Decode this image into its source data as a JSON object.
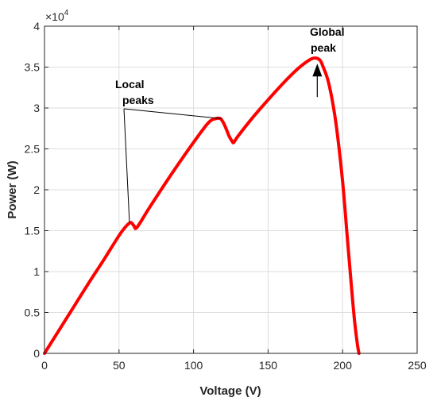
{
  "chart_data": {
    "type": "line",
    "title": "",
    "xlabel": "Voltage (V)",
    "ylabel": "Power (W)",
    "xlim": [
      0,
      250
    ],
    "ylim": [
      0,
      40000
    ],
    "y_exponent_label": "×10",
    "y_exponent_power": "4",
    "grid": true,
    "x_ticks": [
      "0",
      "50",
      "100",
      "150",
      "200",
      "250"
    ],
    "y_ticks": [
      "0",
      "0.5",
      "1",
      "1.5",
      "2",
      "2.5",
      "3",
      "3.5",
      "4"
    ],
    "series": [
      {
        "color": "#ff0000",
        "x": [
          0,
          10,
          20,
          30,
          40,
          50,
          55,
          58,
          60,
          62,
          70,
          80,
          90,
          100,
          110,
          115,
          118,
          120,
          122,
          124,
          126,
          127,
          130,
          140,
          150,
          160,
          170,
          178,
          182,
          185,
          187,
          190,
          193,
          196,
          200,
          203,
          206,
          208,
          210,
          211
        ],
        "y": [
          0,
          2900,
          5800,
          8700,
          11500,
          14400,
          15600,
          16000,
          15600,
          15400,
          17700,
          20500,
          23200,
          25800,
          28200,
          28700,
          28700,
          28200,
          27400,
          26500,
          25900,
          25800,
          26600,
          28900,
          31000,
          33000,
          34800,
          35900,
          36100,
          35800,
          35000,
          33500,
          31000,
          27500,
          21000,
          14500,
          8000,
          4000,
          1000,
          0
        ]
      }
    ],
    "annotations": [
      {
        "text_line1": "Local",
        "text_line2": "peaks",
        "targets_x": [
          57,
          119
        ],
        "targets_y": [
          16000,
          28700
        ]
      },
      {
        "text_line1": "Global",
        "text_line2": "peak",
        "target_x": 183,
        "target_y": 36000
      }
    ]
  }
}
